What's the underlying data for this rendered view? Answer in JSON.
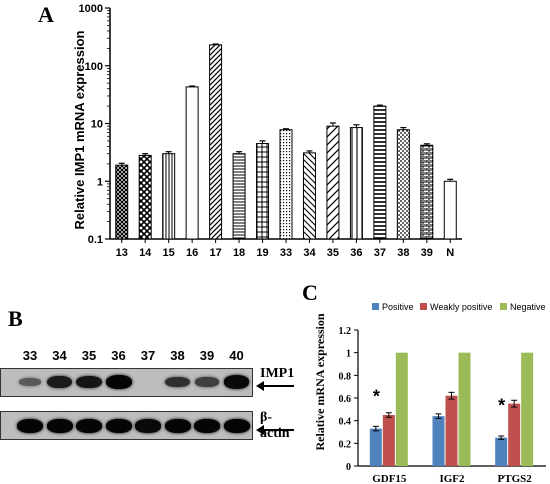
{
  "panels": {
    "a": {
      "letter": "A"
    },
    "b": {
      "letter": "B"
    },
    "c": {
      "letter": "C"
    }
  },
  "chart_data": [
    {
      "type": "bar",
      "scale": "log",
      "ylabel": "Relative  IMP1 mRNA expression",
      "ylim": [
        0.1,
        1000
      ],
      "yticks": [
        "0.1",
        "1",
        "10",
        "100",
        "1000"
      ],
      "categories": [
        "13",
        "14",
        "15",
        "16",
        "17",
        "18",
        "19",
        "33",
        "34",
        "35",
        "36",
        "37",
        "38",
        "39",
        "N"
      ],
      "values": [
        1.9,
        2.8,
        3.0,
        43,
        230,
        3.0,
        4.5,
        7.8,
        3.1,
        9.0,
        8.5,
        20,
        7.8,
        4.2,
        1.0
      ],
      "errors": [
        0.15,
        0.2,
        0.25,
        1.5,
        8,
        0.25,
        0.5,
        0.3,
        0.25,
        1.2,
        1.0,
        0.8,
        0.7,
        0.25,
        0.08
      ],
      "patterns": [
        "crosshatch-dark",
        "checker",
        "vertical-dense",
        "blank",
        "diagonal",
        "horizontal-dense",
        "grid",
        "dots",
        "diagonal-back",
        "diagonal-wide",
        "vertical-wide",
        "horizontal-wide",
        "horizontal-dotted",
        "brick",
        "blank"
      ]
    },
    {
      "type": "bar",
      "ylabel": "Relative mRNA expression",
      "ylim": [
        0,
        1.2
      ],
      "yticks": [
        "0",
        "0.2",
        "0.4",
        "0.6",
        "0.8",
        "1",
        "1.2"
      ],
      "categories": [
        "GDF15",
        "IGF2",
        "PTGS2"
      ],
      "series": [
        {
          "name": "Positive",
          "color": "#4f81bd",
          "values": [
            0.33,
            0.44,
            0.25
          ],
          "errors": [
            0.02,
            0.02,
            0.015
          ]
        },
        {
          "name": "Weakly positive",
          "color": "#c0504d",
          "values": [
            0.45,
            0.62,
            0.55
          ],
          "errors": [
            0.02,
            0.03,
            0.03
          ]
        },
        {
          "name": "Negative",
          "color": "#9bbb59",
          "values": [
            1,
            1,
            1
          ],
          "errors": [
            0,
            0,
            0
          ]
        }
      ],
      "legend": "top",
      "annotations": [
        {
          "text": "*",
          "category": "GDF15"
        },
        {
          "text": "*",
          "category": "PTGS2"
        }
      ]
    }
  ],
  "blot": {
    "lanes": [
      "33",
      "34",
      "35",
      "36",
      "37",
      "38",
      "39",
      "40"
    ],
    "rows": [
      {
        "label": "IMP1",
        "intensities": [
          0.2,
          0.8,
          0.85,
          1.0,
          0.0,
          0.6,
          0.45,
          0.95
        ]
      },
      {
        "label": "β-actin",
        "intensities": [
          1.0,
          1.0,
          1.0,
          1.0,
          0.95,
          1.0,
          1.0,
          1.0
        ]
      }
    ]
  }
}
